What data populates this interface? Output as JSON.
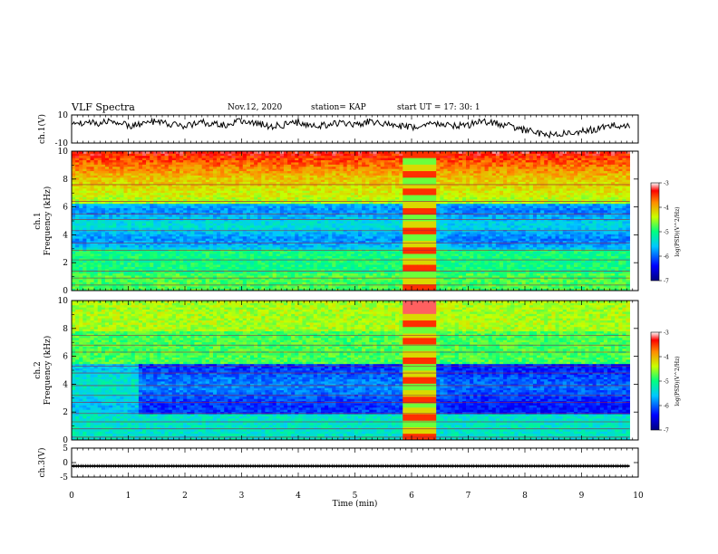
{
  "header": {
    "title": "VLF Spectra",
    "date": "Nov.12, 2020",
    "station": "station= KAP",
    "start": "start  UT =   17: 30: 1"
  },
  "chart_data": [
    {
      "type": "line",
      "panel": "ch1-waveform",
      "ylabel": "ch.1(V)",
      "ylim": [
        -10,
        10
      ],
      "y_tick_labels": [
        "10",
        "-10"
      ],
      "x": [
        0,
        0.25,
        0.5,
        0.75,
        1,
        1.25,
        1.5,
        1.75,
        2,
        2.25,
        2.5,
        2.75,
        3,
        3.25,
        3.5,
        3.75,
        4,
        4.25,
        4.5,
        4.75,
        5,
        5.25,
        5.5,
        5.75,
        6,
        6.25,
        6.5,
        6.75,
        7,
        7.25,
        7.5,
        7.75,
        8,
        8.25,
        8.5,
        8.75,
        9,
        9.25,
        9.5,
        9.75,
        9.85
      ],
      "values": [
        3,
        5,
        4,
        6,
        2,
        4,
        5,
        3,
        2,
        5,
        4,
        3,
        6,
        4,
        2,
        3,
        5,
        2,
        3,
        4,
        3,
        5,
        4,
        2,
        1,
        3,
        4,
        2,
        3,
        5,
        4,
        2,
        -1,
        -3,
        -4,
        -3,
        -2,
        0,
        2,
        3,
        2
      ],
      "color": "#000000"
    },
    {
      "type": "heatmap",
      "panel": "ch1-spectrogram",
      "ylabel": "ch.1\nFrequency (kHz)",
      "ylim": [
        0,
        10
      ],
      "y_tick_labels": [
        "0",
        "2",
        "4",
        "6",
        "8",
        "10"
      ],
      "xlim": [
        0,
        10
      ],
      "data_extent_min": [
        0,
        9.85
      ],
      "gap_min": [
        5.85,
        6.45
      ],
      "colorbar": {
        "label": "log(PSD)(V^2/Hz)",
        "range": [
          -7,
          -3
        ],
        "tick_labels": [
          "-3",
          "-4",
          "-5",
          "-6",
          "-7"
        ],
        "colors": [
          "#000080",
          "#0000ff",
          "#00c8ff",
          "#00ff80",
          "#c8ff00",
          "#ff8c00",
          "#ff0000",
          "#ffffff"
        ]
      }
    },
    {
      "type": "heatmap",
      "panel": "ch2-spectrogram",
      "ylabel": "ch.2\nFrequency (kHz)",
      "ylim": [
        0,
        10
      ],
      "y_tick_labels": [
        "0",
        "2",
        "4",
        "6",
        "8",
        "10"
      ],
      "xlim": [
        0,
        10
      ],
      "data_extent_min": [
        0,
        9.85
      ],
      "gap_min": [
        5.85,
        6.45
      ],
      "colorbar": {
        "label": "log(PSD)(V^2/Hz)",
        "range": [
          -7,
          -3
        ],
        "tick_labels": [
          "-3",
          "-4",
          "-5",
          "-6",
          "-7"
        ],
        "colors": [
          "#000080",
          "#0000ff",
          "#00c8ff",
          "#00ff80",
          "#c8ff00",
          "#ff8c00",
          "#ff0000",
          "#ffffff"
        ]
      }
    },
    {
      "type": "line",
      "panel": "ch3-waveform",
      "ylabel": "ch.3(V)",
      "ylim": [
        -5,
        5
      ],
      "y_tick_labels": [
        "5",
        "0",
        "-5"
      ],
      "x": [
        0,
        9.85
      ],
      "values": [
        -1.2,
        -1.2
      ],
      "color": "#000000"
    }
  ],
  "x_axis": {
    "label": "Time (min)",
    "tick_labels": [
      "0",
      "1",
      "2",
      "3",
      "4",
      "5",
      "6",
      "7",
      "8",
      "9",
      "10"
    ],
    "range": [
      0,
      10
    ]
  }
}
